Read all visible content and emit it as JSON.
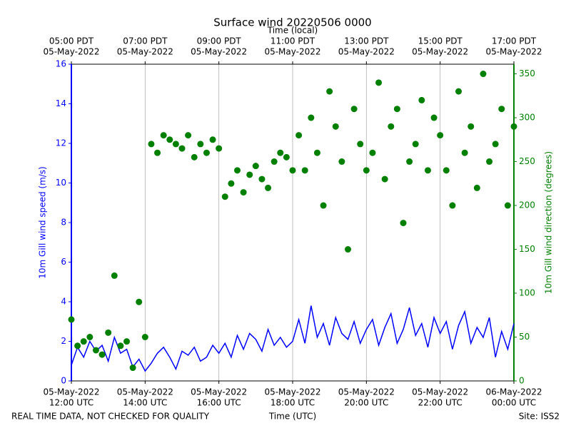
{
  "chart_data": {
    "type": "line-scatter",
    "title": "Surface wind 20220506 0000",
    "xlabel": "Time (UTC)",
    "x2label": "Time (local)",
    "ylabel": "10m Gill wind speed (m/s)",
    "y2label": "10m Gill wind direction (degrees)",
    "annotations": [
      "REAL TIME DATA, NOT CHECKED FOR QUALITY",
      "Site: ISS2"
    ],
    "grid": "x",
    "xlim": [
      "2022-05-05 12:00",
      "2022-05-06 00:00"
    ],
    "xticks": [
      {
        "value": "2022-05-05 12:00",
        "label": [
          "05-May-2022",
          "12:00 UTC"
        ]
      },
      {
        "value": "2022-05-05 14:00",
        "label": [
          "05-May-2022",
          "14:00 UTC"
        ]
      },
      {
        "value": "2022-05-05 16:00",
        "label": [
          "05-May-2022",
          "16:00 UTC"
        ]
      },
      {
        "value": "2022-05-05 18:00",
        "label": [
          "05-May-2022",
          "18:00 UTC"
        ]
      },
      {
        "value": "2022-05-05 20:00",
        "label": [
          "05-May-2022",
          "20:00 UTC"
        ]
      },
      {
        "value": "2022-05-05 22:00",
        "label": [
          "05-May-2022",
          "22:00 UTC"
        ]
      },
      {
        "value": "2022-05-06 00:00",
        "label": [
          "06-May-2022",
          "00:00 UTC"
        ]
      }
    ],
    "x2ticks": [
      {
        "value": "2022-05-05 12:00",
        "label": [
          "05:00 PDT",
          "05-May-2022"
        ]
      },
      {
        "value": "2022-05-05 14:00",
        "label": [
          "07:00 PDT",
          "05-May-2022"
        ]
      },
      {
        "value": "2022-05-05 16:00",
        "label": [
          "09:00 PDT",
          "05-May-2022"
        ]
      },
      {
        "value": "2022-05-05 18:00",
        "label": [
          "11:00 PDT",
          "05-May-2022"
        ]
      },
      {
        "value": "2022-05-05 20:00",
        "label": [
          "13:00 PDT",
          "05-May-2022"
        ]
      },
      {
        "value": "2022-05-05 22:00",
        "label": [
          "15:00 PDT",
          "05-May-2022"
        ]
      },
      {
        "value": "2022-05-06 00:00",
        "label": [
          "17:00 PDT",
          "05-May-2022"
        ]
      }
    ],
    "ylim": [
      0,
      16
    ],
    "yticks": [
      0,
      2,
      4,
      6,
      8,
      10,
      12,
      14,
      16
    ],
    "y2lim": [
      0,
      361
    ],
    "y2ticks": [
      0,
      50,
      100,
      150,
      200,
      250,
      300,
      350
    ],
    "x": [
      "2022-05-05 12:00",
      "2022-05-05 12:10",
      "2022-05-05 12:20",
      "2022-05-05 12:30",
      "2022-05-05 12:40",
      "2022-05-05 12:50",
      "2022-05-05 13:00",
      "2022-05-05 13:10",
      "2022-05-05 13:20",
      "2022-05-05 13:30",
      "2022-05-05 13:40",
      "2022-05-05 13:50",
      "2022-05-05 14:00",
      "2022-05-05 14:10",
      "2022-05-05 14:20",
      "2022-05-05 14:30",
      "2022-05-05 14:40",
      "2022-05-05 14:50",
      "2022-05-05 15:00",
      "2022-05-05 15:10",
      "2022-05-05 15:20",
      "2022-05-05 15:30",
      "2022-05-05 15:40",
      "2022-05-05 15:50",
      "2022-05-05 16:00",
      "2022-05-05 16:10",
      "2022-05-05 16:20",
      "2022-05-05 16:30",
      "2022-05-05 16:40",
      "2022-05-05 16:50",
      "2022-05-05 17:00",
      "2022-05-05 17:10",
      "2022-05-05 17:20",
      "2022-05-05 17:30",
      "2022-05-05 17:40",
      "2022-05-05 17:50",
      "2022-05-05 18:00",
      "2022-05-05 18:10",
      "2022-05-05 18:20",
      "2022-05-05 18:30",
      "2022-05-05 18:40",
      "2022-05-05 18:50",
      "2022-05-05 19:00",
      "2022-05-05 19:10",
      "2022-05-05 19:20",
      "2022-05-05 19:30",
      "2022-05-05 19:40",
      "2022-05-05 19:50",
      "2022-05-05 20:00",
      "2022-05-05 20:10",
      "2022-05-05 20:20",
      "2022-05-05 20:30",
      "2022-05-05 20:40",
      "2022-05-05 20:50",
      "2022-05-05 21:00",
      "2022-05-05 21:10",
      "2022-05-05 21:20",
      "2022-05-05 21:30",
      "2022-05-05 21:40",
      "2022-05-05 21:50",
      "2022-05-05 22:00",
      "2022-05-05 22:10",
      "2022-05-05 22:20",
      "2022-05-05 22:30",
      "2022-05-05 22:40",
      "2022-05-05 22:50",
      "2022-05-05 23:00",
      "2022-05-05 23:10",
      "2022-05-05 23:20",
      "2022-05-05 23:30",
      "2022-05-05 23:40",
      "2022-05-05 23:50",
      "2022-05-06 00:00"
    ],
    "series": [
      {
        "name": "10m Gill wind speed",
        "color": "#0000ff",
        "mark": "line",
        "axis": "y",
        "values": [
          0.8,
          1.7,
          1.2,
          2.0,
          1.5,
          1.8,
          1.0,
          2.2,
          1.4,
          1.6,
          0.7,
          1.1,
          0.5,
          0.9,
          1.4,
          1.7,
          1.2,
          0.6,
          1.5,
          1.3,
          1.7,
          1.0,
          1.2,
          1.8,
          1.4,
          1.9,
          1.2,
          2.3,
          1.6,
          2.4,
          2.1,
          1.5,
          2.6,
          1.8,
          2.2,
          1.7,
          2.0,
          3.1,
          1.9,
          3.8,
          2.2,
          2.9,
          1.8,
          3.2,
          2.4,
          2.1,
          3.0,
          1.9,
          2.6,
          3.1,
          1.8,
          2.7,
          3.4,
          1.9,
          2.6,
          3.7,
          2.3,
          2.9,
          1.7,
          3.2,
          2.4,
          3.0,
          1.6,
          2.8,
          3.5,
          1.9,
          2.7,
          2.2,
          3.2,
          1.2,
          2.5,
          1.6,
          2.9
        ]
      },
      {
        "name": "10m Gill wind direction",
        "color": "#008000",
        "mark": "scatter",
        "axis": "y2",
        "values": [
          70,
          40,
          45,
          50,
          35,
          30,
          55,
          120,
          40,
          45,
          15,
          90,
          50,
          270,
          260,
          280,
          275,
          270,
          265,
          280,
          255,
          270,
          260,
          275,
          265,
          210,
          225,
          240,
          215,
          235,
          245,
          230,
          220,
          250,
          260,
          255,
          240,
          280,
          240,
          300,
          260,
          200,
          330,
          290,
          250,
          150,
          310,
          270,
          240,
          260,
          340,
          230,
          290,
          310,
          180,
          250,
          270,
          320,
          240,
          300,
          280,
          240,
          200,
          330,
          260,
          290,
          220,
          350,
          250,
          270,
          310,
          200,
          290
        ]
      }
    ]
  }
}
